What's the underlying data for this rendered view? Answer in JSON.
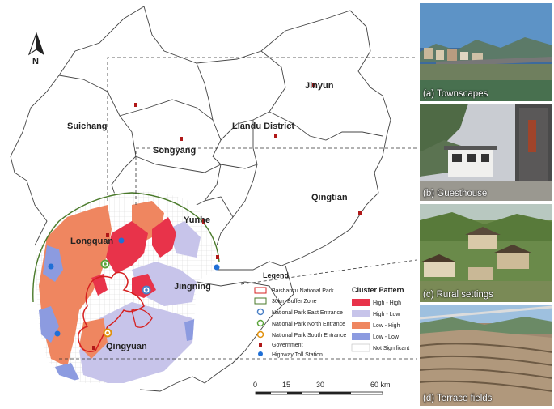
{
  "north_label": "N",
  "places": {
    "jinyun": "Jinyun",
    "suichang": "Suichang",
    "liandu": "Liandu  District",
    "songyang": "Songyang",
    "qingtian": "Qingtian",
    "yunhe": "Yunhe",
    "longquan": "Longquan",
    "jingning": "Jingning",
    "qingyuan": "Qingyuan"
  },
  "legend": {
    "title": "Legend",
    "items": [
      {
        "label": "Baishanzu National Park",
        "symbol": "outline-red"
      },
      {
        "label": "30km Buffer Zone",
        "symbol": "outline-green"
      },
      {
        "label": "National Park East Entrance",
        "symbol": "ring-blue"
      },
      {
        "label": "National Park North Entrance",
        "symbol": "ring-green"
      },
      {
        "label": "National Park South Entrance",
        "symbol": "ring-orange"
      },
      {
        "label": "Government",
        "symbol": "marker-red"
      },
      {
        "label": "Highway Toll Station",
        "symbol": "dot-blue"
      }
    ],
    "cluster_title": "Cluster Pattern",
    "clusters": [
      {
        "label": "High - High",
        "color": "#e8334a"
      },
      {
        "label": "High - Low",
        "color": "#c7c4ea"
      },
      {
        "label": "Low - High",
        "color": "#ef8660"
      },
      {
        "label": "Low - Low",
        "color": "#8c9be0"
      },
      {
        "label": "Not Significant",
        "color": "#ffffff"
      }
    ]
  },
  "scalebar": {
    "ticks": [
      "0",
      "15",
      "30",
      "60 km"
    ]
  },
  "photos": [
    {
      "caption": "(a) Townscapes",
      "icon": "townscape-photo"
    },
    {
      "caption": "(b) Guesthouse",
      "icon": "guesthouse-photo"
    },
    {
      "caption": "(c) Rural settings",
      "icon": "rural-photo"
    },
    {
      "caption": "(d) Terrace fields",
      "icon": "terrace-photo"
    }
  ],
  "colors": {
    "high_high": "#e8334a",
    "high_low": "#c7c4ea",
    "low_high": "#ef8660",
    "low_low": "#8c9be0",
    "buffer": "#4a7a2a",
    "park_outline": "#d62020",
    "toll_station": "#1f6fd6"
  }
}
